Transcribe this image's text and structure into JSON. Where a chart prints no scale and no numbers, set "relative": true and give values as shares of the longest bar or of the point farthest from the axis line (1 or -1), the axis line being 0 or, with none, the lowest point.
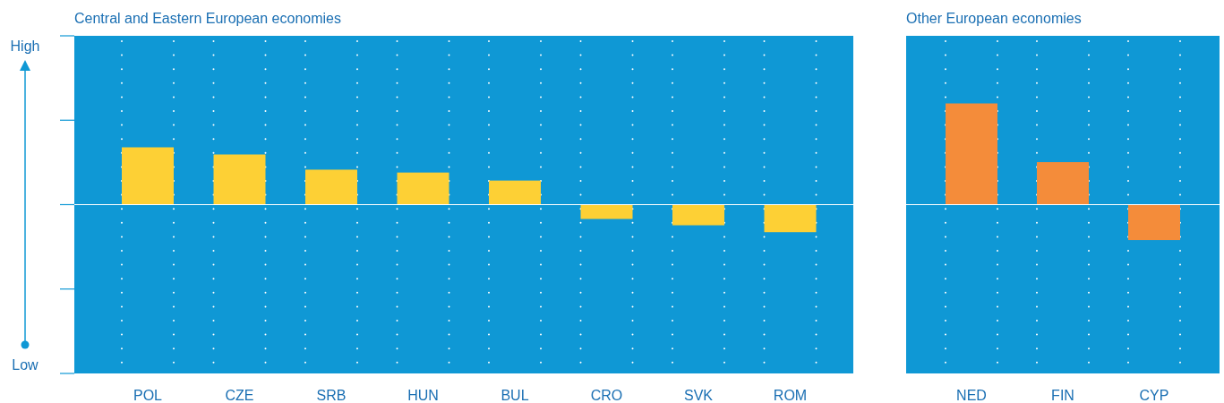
{
  "chart_data": [
    {
      "type": "bar",
      "title": "Central and Eastern European economies",
      "relative": true,
      "grid": true,
      "categories": [
        "POL",
        "CZE",
        "SRB",
        "HUN",
        "BUL",
        "CRO",
        "SVK",
        "ROM"
      ],
      "values": [
        1,
        0.875,
        0.61,
        0.56,
        0.42,
        -0.25,
        -0.36,
        -0.48
      ],
      "color": "#fdd035",
      "annotations": [
        "High",
        "Low"
      ]
    },
    {
      "type": "bar",
      "title": "Other European economies",
      "relative": true,
      "grid": true,
      "categories": [
        "NED",
        "FIN",
        "CYP"
      ],
      "values": [
        1,
        0.42,
        -0.35
      ],
      "color": "#f48c3a"
    }
  ]
}
